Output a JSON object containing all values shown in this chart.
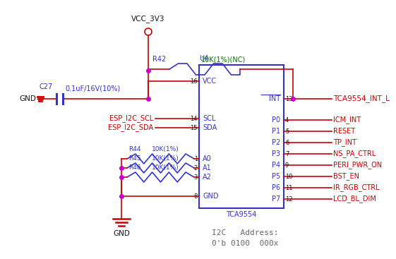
{
  "bg_color": "#ffffff",
  "blue": "#3333cc",
  "red": "#cc0000",
  "magenta": "#cc00cc",
  "green": "#007700",
  "dark": "#111111",
  "ic_label": "TCA9554",
  "ic_ref": "U4",
  "i2c_address_line1": "I2C   Address:",
  "i2c_address_line2": "0'b 0100  000x",
  "vcc_label": "VCC_3V3",
  "gnd_label1": "GND",
  "gnd_label2": "GND",
  "r42_label": "R42",
  "r42_val": "10K(1%)(NC)",
  "c27_label": "C27",
  "c27_val": "0.1uF/16V(10%)",
  "r44_label": "R44",
  "r44_val": "10K(1%)",
  "r45_label": "R45",
  "r45_val": "10K(1%)",
  "r46_label": "R46",
  "r46_val": "10K(1%)",
  "esp_scl": "ESP_I2C_SCL",
  "esp_sda": "ESP_I2C_SDA",
  "tca_int": "TCA9554_INT_L",
  "net_right": [
    "ICM_INT",
    "RESET",
    "TP_INT",
    "NS_PA_CTRL",
    "PERI_PWR_ON",
    "BST_EN",
    "IR_RGB_CTRL",
    "LCD_BL_DIM"
  ],
  "pin_nums_right": [
    "4",
    "5",
    "6",
    "7",
    "9",
    "10",
    "11",
    "12"
  ],
  "port_labels": [
    "P0",
    "P1",
    "P2",
    "P3",
    "P4",
    "P5",
    "P6",
    "P7"
  ]
}
